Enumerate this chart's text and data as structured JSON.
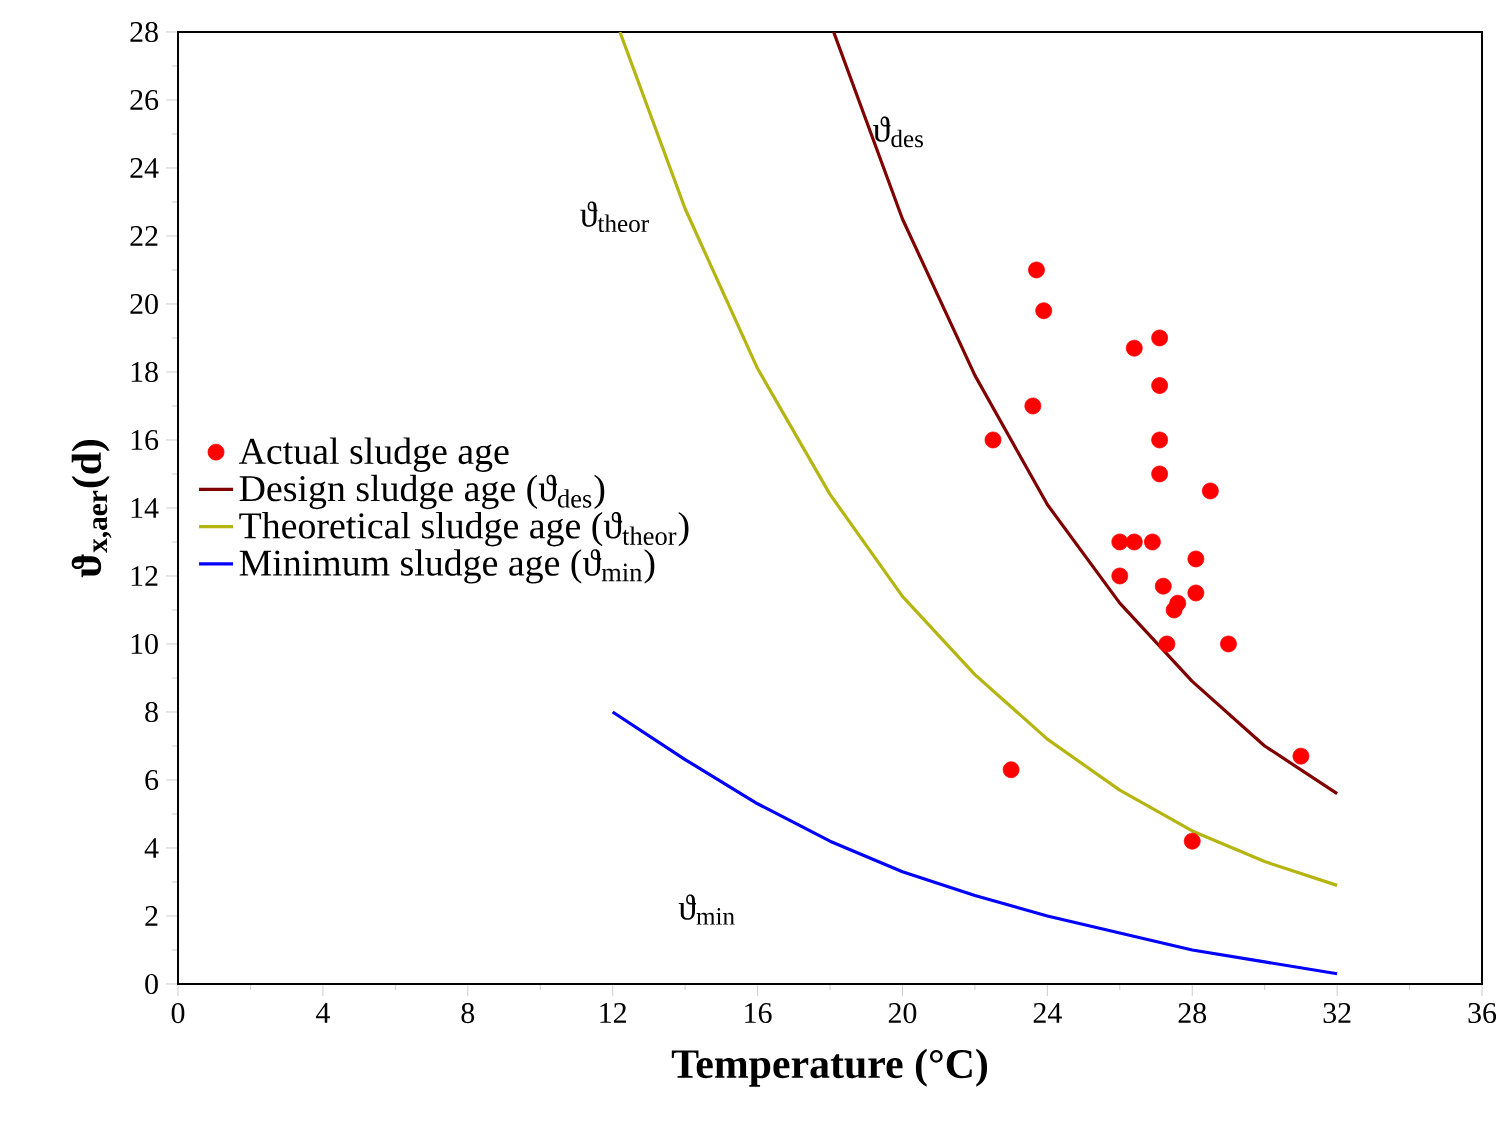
{
  "chart_data": {
    "type": "scatter",
    "xlabel": "Temperature (°C)",
    "ylabel": "**ϑ$_{x,aer}$(d)**",
    "xlim": [
      0,
      36
    ],
    "ylim": [
      0,
      28
    ],
    "xticks": [
      0,
      4,
      8,
      12,
      16,
      20,
      24,
      28,
      32,
      36
    ],
    "yticks": [
      0,
      2,
      4,
      6,
      8,
      10,
      12,
      14,
      16,
      18,
      20,
      22,
      24,
      26,
      28
    ],
    "grid": false,
    "legend": "left",
    "series": [
      {
        "name": "Actual sludge age",
        "marker": "circle",
        "color": "#ff0000",
        "x": [
          22.5,
          23.6,
          23.7,
          23.9,
          23.0,
          26.0,
          26.0,
          26.4,
          26.4,
          26.9,
          27.1,
          27.1,
          27.1,
          27.1,
          27.2,
          27.5,
          27.6,
          27.3,
          28.1,
          28.1,
          28.5,
          29.0,
          28.0,
          31.0
        ],
        "values": [
          16,
          17,
          21,
          19.8,
          6.3,
          13,
          12,
          13,
          18.7,
          13,
          19,
          17.6,
          16,
          15,
          11.7,
          11,
          11.2,
          10,
          11.5,
          12.5,
          14.5,
          10,
          4.2,
          6.7
        ]
      },
      {
        "name": "Design sludge age (ϑ$_{des}$)",
        "type": "line",
        "marker": "none",
        "color": "#800000",
        "x": [
          18.1,
          20,
          22,
          24,
          26,
          28,
          30,
          32
        ],
        "values": [
          28,
          22.5,
          17.9,
          14.1,
          11.2,
          8.9,
          7.0,
          5.6
        ]
      },
      {
        "name": "Theoretical sludge age (ϑ$_{theor}$)",
        "type": "line",
        "marker": "none",
        "color": "#b5b512",
        "x": [
          12.2,
          14,
          16,
          18,
          20,
          22,
          24,
          26,
          28,
          30,
          32
        ],
        "values": [
          28,
          22.8,
          18.1,
          14.4,
          11.4,
          9.1,
          7.2,
          5.7,
          4.5,
          3.6,
          2.9
        ]
      },
      {
        "name": "Minimum sludge age (ϑ$_{min}$)",
        "type": "line",
        "marker": "none",
        "color": "#0000ff",
        "x": [
          12,
          14,
          16,
          18,
          20,
          22,
          24,
          26,
          28,
          30,
          32
        ],
        "values": [
          8.0,
          6.6,
          5.3,
          4.2,
          3.3,
          2.6,
          2.0,
          1.5,
          1.0,
          0.65,
          0.3
        ]
      }
    ],
    "annotations": [
      "ϑ$_{des}$",
      "ϑ$_{theor}$",
      "ϑ$_{min}$"
    ]
  }
}
